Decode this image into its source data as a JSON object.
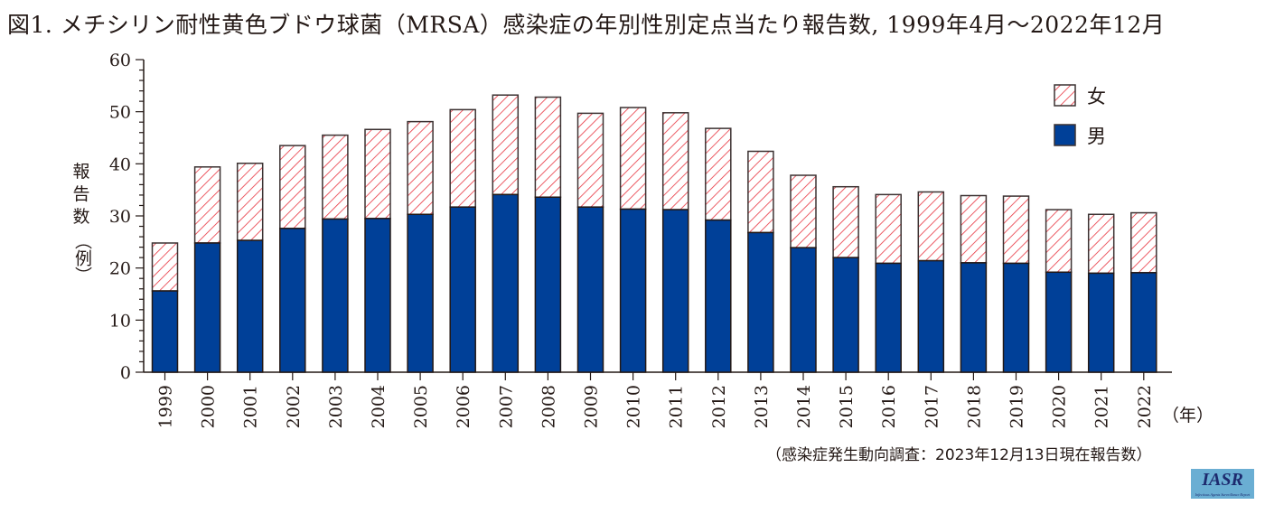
{
  "title": "図1. メチシリン耐性黄色ブドウ球菌（MRSA）感染症の年別性別定点当たり報告数, 1999年4月〜2022年12月",
  "source_note": "（感染症発生動向調査：2023年12月13日現在報告数）",
  "logo": {
    "text": "IASR",
    "subtext": "Infectious Agents Surveillance Report"
  },
  "colors": {
    "male": "#004098",
    "female_hatch": "#e8343f",
    "axis": "#231815",
    "bar_outline": "#3c3232",
    "logo_bg": "#6aaed3"
  },
  "chart_data": {
    "type": "bar",
    "stacked": true,
    "title": "図1. メチシリン耐性黄色ブドウ球菌（MRSA）感染症の年別性別定点当たり報告数, 1999年4月〜2022年12月",
    "xlabel": "（年）",
    "ylabel_chars": [
      "報",
      "告",
      "数",
      "（例）"
    ],
    "ylabel": "報告数（例）",
    "ylim": [
      0,
      60
    ],
    "yticks": [
      0,
      10,
      20,
      30,
      40,
      50,
      60
    ],
    "yminor_step": 2,
    "grid": false,
    "legend_position": "top-right",
    "categories": [
      "1999",
      "2000",
      "2001",
      "2002",
      "2003",
      "2004",
      "2005",
      "2006",
      "2007",
      "2008",
      "2009",
      "2010",
      "2011",
      "2012",
      "2013",
      "2014",
      "2015",
      "2016",
      "2017",
      "2018",
      "2019",
      "2020",
      "2021",
      "2022"
    ],
    "series": [
      {
        "name": "男",
        "style": "solid",
        "values": [
          15.6,
          24.8,
          25.3,
          27.6,
          29.4,
          29.5,
          30.3,
          31.7,
          34.1,
          33.6,
          31.7,
          31.3,
          31.2,
          29.2,
          26.8,
          23.9,
          22.0,
          20.9,
          21.4,
          21.0,
          20.9,
          19.2,
          19.0,
          19.1
        ]
      },
      {
        "name": "女",
        "style": "hatched",
        "values": [
          9.2,
          14.6,
          14.8,
          15.9,
          16.1,
          17.1,
          17.8,
          18.7,
          19.1,
          19.2,
          18.0,
          19.5,
          18.6,
          17.6,
          15.6,
          13.9,
          13.6,
          13.2,
          13.2,
          12.9,
          12.9,
          12.0,
          11.3,
          11.5
        ]
      }
    ],
    "legend": [
      "女",
      "男"
    ]
  }
}
